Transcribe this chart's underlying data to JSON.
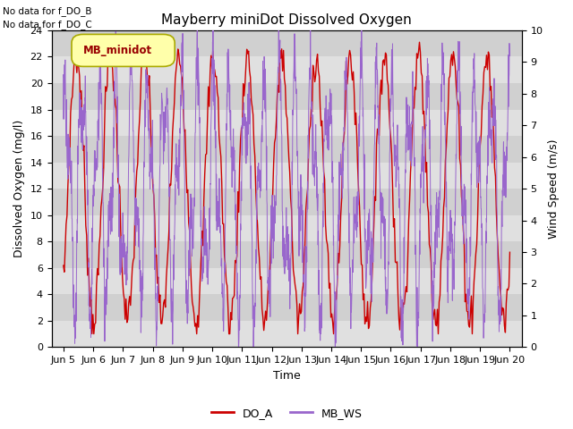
{
  "title": "Mayberry miniDot Dissolved Oxygen",
  "ylabel_left": "Dissolved Oxygen (mg/l)",
  "ylabel_right": "Wind Speed (m/s)",
  "xlabel": "Time",
  "ylim_left": [
    0,
    24
  ],
  "ylim_right": [
    0.0,
    10.0
  ],
  "yticks_left": [
    0,
    2,
    4,
    6,
    8,
    10,
    12,
    14,
    16,
    18,
    20,
    22,
    24
  ],
  "yticks_right": [
    0.0,
    1.0,
    2.0,
    3.0,
    4.0,
    5.0,
    6.0,
    7.0,
    8.0,
    9.0,
    10.0
  ],
  "xticklabels": [
    "Jun 5",
    "Jun 6",
    "Jun 7",
    "Jun 8",
    "Jun 9",
    "Jun 10",
    "Jun 11",
    "Jun 12",
    "Jun 13",
    "Jun 14",
    "Jun 15",
    "Jun 16",
    "Jun 17",
    "Jun 18",
    "Jun 19",
    "Jun 20"
  ],
  "no_data_text": [
    "No data for f_DO_B",
    "No data for f_DO_C"
  ],
  "legend_box_label": "MB_minidot",
  "legend_entries": [
    "DO_A",
    "MB_WS"
  ],
  "do_color": "#cc0000",
  "ws_color": "#9966cc",
  "bg_color": "#e8e8e8",
  "band_colors": [
    "#e0e0e0",
    "#d0d0d0"
  ],
  "title_fontsize": 11,
  "axis_fontsize": 9,
  "tick_fontsize": 8,
  "legend_fontsize": 9
}
